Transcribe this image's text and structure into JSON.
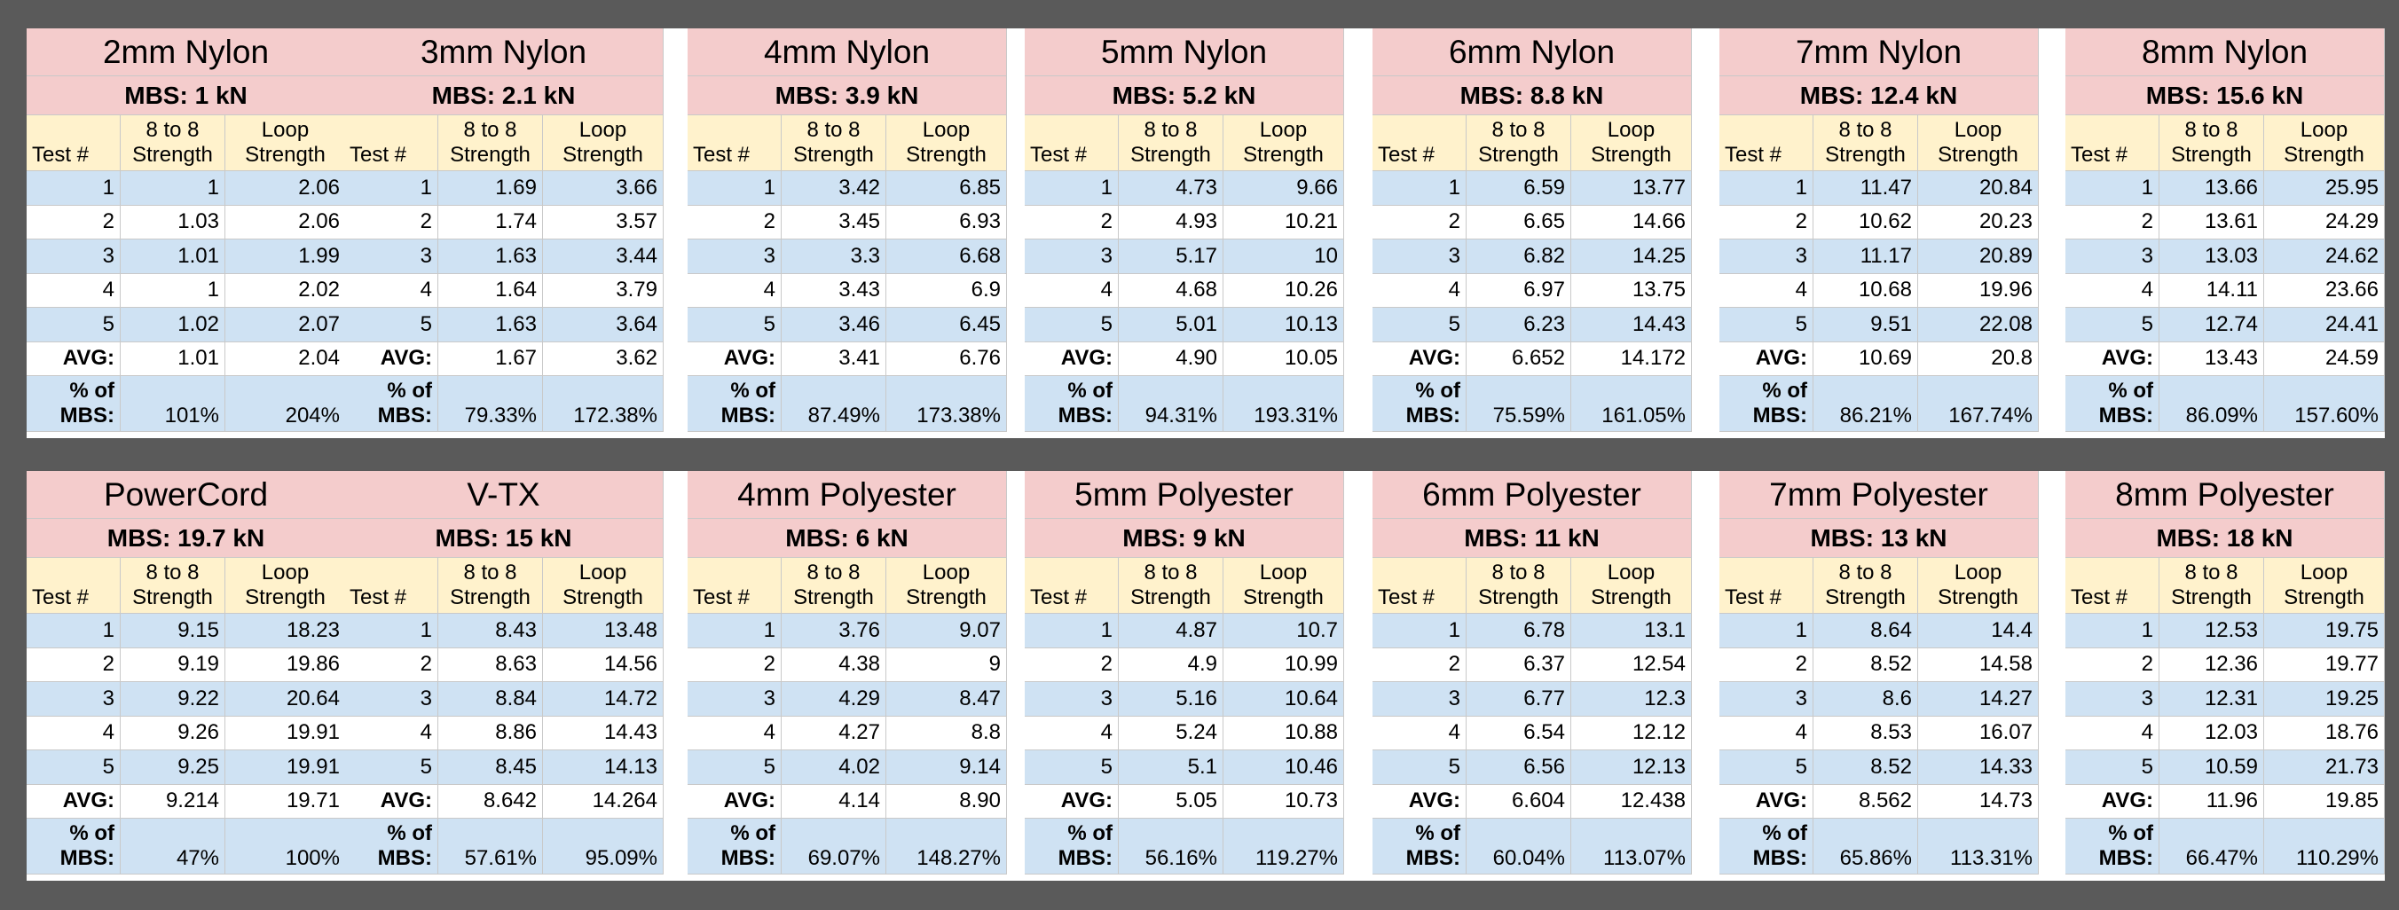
{
  "labels": {
    "test_num": "Test #",
    "col1_line1": "8 to 8",
    "col1_line2": "Strength",
    "col2_line1": "Loop",
    "col2_line2": "Strength",
    "avg": "AVG:",
    "pct_line1": "% of",
    "pct_line2": "MBS:"
  },
  "tables": [
    {
      "title": "2mm Nylon",
      "mbs": "MBS: 1 kN",
      "rows": [
        [
          "1",
          "1",
          "2.06"
        ],
        [
          "2",
          "1.03",
          "2.06"
        ],
        [
          "3",
          "1.01",
          "1.99"
        ],
        [
          "4",
          "1",
          "2.02"
        ],
        [
          "5",
          "1.02",
          "2.07"
        ]
      ],
      "avg": [
        "1.01",
        "2.04"
      ],
      "pct": [
        "101%",
        "204%"
      ]
    },
    {
      "title": "3mm Nylon",
      "mbs": "MBS: 2.1 kN",
      "rows": [
        [
          "1",
          "1.69",
          "3.66"
        ],
        [
          "2",
          "1.74",
          "3.57"
        ],
        [
          "3",
          "1.63",
          "3.44"
        ],
        [
          "4",
          "1.64",
          "3.79"
        ],
        [
          "5",
          "1.63",
          "3.64"
        ]
      ],
      "avg": [
        "1.67",
        "3.62"
      ],
      "pct": [
        "79.33%",
        "172.38%"
      ]
    },
    {
      "title": "4mm Nylon",
      "mbs": "MBS: 3.9 kN",
      "rows": [
        [
          "1",
          "3.42",
          "6.85"
        ],
        [
          "2",
          "3.45",
          "6.93"
        ],
        [
          "3",
          "3.3",
          "6.68"
        ],
        [
          "4",
          "3.43",
          "6.9"
        ],
        [
          "5",
          "3.46",
          "6.45"
        ]
      ],
      "avg": [
        "3.41",
        "6.76"
      ],
      "pct": [
        "87.49%",
        "173.38%"
      ]
    },
    {
      "title": "5mm Nylon",
      "mbs": "MBS: 5.2 kN",
      "rows": [
        [
          "1",
          "4.73",
          "9.66"
        ],
        [
          "2",
          "4.93",
          "10.21"
        ],
        [
          "3",
          "5.17",
          "10"
        ],
        [
          "4",
          "4.68",
          "10.26"
        ],
        [
          "5",
          "5.01",
          "10.13"
        ]
      ],
      "avg": [
        "4.90",
        "10.05"
      ],
      "pct": [
        "94.31%",
        "193.31%"
      ]
    },
    {
      "title": "6mm Nylon",
      "mbs": "MBS: 8.8 kN",
      "rows": [
        [
          "1",
          "6.59",
          "13.77"
        ],
        [
          "2",
          "6.65",
          "14.66"
        ],
        [
          "3",
          "6.82",
          "14.25"
        ],
        [
          "4",
          "6.97",
          "13.75"
        ],
        [
          "5",
          "6.23",
          "14.43"
        ]
      ],
      "avg": [
        "6.652",
        "14.172"
      ],
      "pct": [
        "75.59%",
        "161.05%"
      ]
    },
    {
      "title": "7mm Nylon",
      "mbs": "MBS: 12.4 kN",
      "rows": [
        [
          "1",
          "11.47",
          "20.84"
        ],
        [
          "2",
          "10.62",
          "20.23"
        ],
        [
          "3",
          "11.17",
          "20.89"
        ],
        [
          "4",
          "10.68",
          "19.96"
        ],
        [
          "5",
          "9.51",
          "22.08"
        ]
      ],
      "avg": [
        "10.69",
        "20.8"
      ],
      "pct": [
        "86.21%",
        "167.74%"
      ]
    },
    {
      "title": "8mm Nylon",
      "mbs": "MBS: 15.6 kN",
      "rows": [
        [
          "1",
          "13.66",
          "25.95"
        ],
        [
          "2",
          "13.61",
          "24.29"
        ],
        [
          "3",
          "13.03",
          "24.62"
        ],
        [
          "4",
          "14.11",
          "23.66"
        ],
        [
          "5",
          "12.74",
          "24.41"
        ]
      ],
      "avg": [
        "13.43",
        "24.59"
      ],
      "pct": [
        "86.09%",
        "157.60%"
      ]
    },
    {
      "title": "PowerCord",
      "mbs": "MBS: 19.7 kN",
      "rows": [
        [
          "1",
          "9.15",
          "18.23"
        ],
        [
          "2",
          "9.19",
          "19.86"
        ],
        [
          "3",
          "9.22",
          "20.64"
        ],
        [
          "4",
          "9.26",
          "19.91"
        ],
        [
          "5",
          "9.25",
          "19.91"
        ]
      ],
      "avg": [
        "9.214",
        "19.71"
      ],
      "pct": [
        "47%",
        "100%"
      ]
    },
    {
      "title": "V-TX",
      "mbs": "MBS: 15 kN",
      "rows": [
        [
          "1",
          "8.43",
          "13.48"
        ],
        [
          "2",
          "8.63",
          "14.56"
        ],
        [
          "3",
          "8.84",
          "14.72"
        ],
        [
          "4",
          "8.86",
          "14.43"
        ],
        [
          "5",
          "8.45",
          "14.13"
        ]
      ],
      "avg": [
        "8.642",
        "14.264"
      ],
      "pct": [
        "57.61%",
        "95.09%"
      ]
    },
    {
      "title": "4mm Polyester",
      "mbs": "MBS: 6 kN",
      "rows": [
        [
          "1",
          "3.76",
          "9.07"
        ],
        [
          "2",
          "4.38",
          "9"
        ],
        [
          "3",
          "4.29",
          "8.47"
        ],
        [
          "4",
          "4.27",
          "8.8"
        ],
        [
          "5",
          "4.02",
          "9.14"
        ]
      ],
      "avg": [
        "4.14",
        "8.90"
      ],
      "pct": [
        "69.07%",
        "148.27%"
      ]
    },
    {
      "title": "5mm Polyester",
      "mbs": "MBS: 9 kN",
      "rows": [
        [
          "1",
          "4.87",
          "10.7"
        ],
        [
          "2",
          "4.9",
          "10.99"
        ],
        [
          "3",
          "5.16",
          "10.64"
        ],
        [
          "4",
          "5.24",
          "10.88"
        ],
        [
          "5",
          "5.1",
          "10.46"
        ]
      ],
      "avg": [
        "5.05",
        "10.73"
      ],
      "pct": [
        "56.16%",
        "119.27%"
      ]
    },
    {
      "title": "6mm Polyester",
      "mbs": "MBS: 11 kN",
      "rows": [
        [
          "1",
          "6.78",
          "13.1"
        ],
        [
          "2",
          "6.37",
          "12.54"
        ],
        [
          "3",
          "6.77",
          "12.3"
        ],
        [
          "4",
          "6.54",
          "12.12"
        ],
        [
          "5",
          "6.56",
          "12.13"
        ]
      ],
      "avg": [
        "6.604",
        "12.438"
      ],
      "pct": [
        "60.04%",
        "113.07%"
      ]
    },
    {
      "title": "7mm Polyester",
      "mbs": "MBS: 13 kN",
      "rows": [
        [
          "1",
          "8.64",
          "14.4"
        ],
        [
          "2",
          "8.52",
          "14.58"
        ],
        [
          "3",
          "8.6",
          "14.27"
        ],
        [
          "4",
          "8.53",
          "16.07"
        ],
        [
          "5",
          "8.52",
          "14.33"
        ]
      ],
      "avg": [
        "8.562",
        "14.73"
      ],
      "pct": [
        "65.86%",
        "113.31%"
      ]
    },
    {
      "title": "8mm Polyester",
      "mbs": "MBS: 18 kN",
      "rows": [
        [
          "1",
          "12.53",
          "19.75"
        ],
        [
          "2",
          "12.36",
          "19.77"
        ],
        [
          "3",
          "12.31",
          "19.25"
        ],
        [
          "4",
          "12.03",
          "18.76"
        ],
        [
          "5",
          "10.59",
          "21.73"
        ]
      ],
      "avg": [
        "11.96",
        "19.85"
      ],
      "pct": [
        "66.47%",
        "110.29%"
      ]
    }
  ]
}
